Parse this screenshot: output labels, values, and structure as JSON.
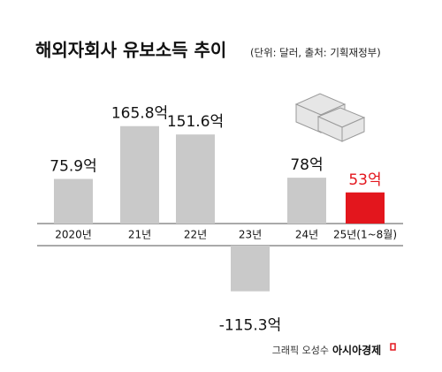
{
  "chart_data": {
    "type": "bar",
    "title": "해외자회사 유보소득 추이",
    "subtitle": "(단위: 달러, 출처: 기획재정부)",
    "categories": [
      "2020년",
      "21년",
      "22년",
      "23년",
      "24년",
      "25년(1~8월)"
    ],
    "values": [
      75.9,
      165.8,
      151.6,
      -115.3,
      78,
      53
    ],
    "value_labels": [
      "75.9억",
      "165.8억",
      "151.6억",
      "-115.3억",
      "78억",
      "53억"
    ],
    "colors": [
      "#c9c9c9",
      "#c9c9c9",
      "#c9c9c9",
      "#c9c9c9",
      "#c9c9c9",
      "#e3161d"
    ],
    "credit": "그래픽 오성수",
    "publisher": "아시아경제"
  }
}
